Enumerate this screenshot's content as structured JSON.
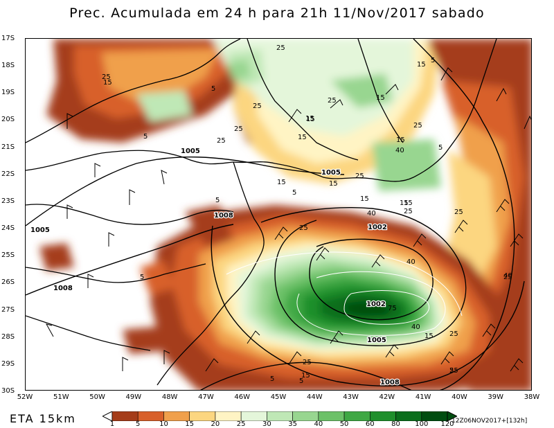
{
  "title": "Prec. Acumulada em 24 h para 21h 11/Nov/2017 sabado",
  "model_label": "ETA 15km",
  "run_stamp": "12Z06NOV2017+[132h]",
  "y_axis_labels": [
    "17S",
    "18S",
    "19S",
    "20S",
    "21S",
    "22S",
    "23S",
    "24S",
    "25S",
    "26S",
    "27S",
    "28S",
    "29S",
    "30S"
  ],
  "x_axis_labels": [
    "52W",
    "51W",
    "50W",
    "49W",
    "48W",
    "47W",
    "46W",
    "45W",
    "44W",
    "43W",
    "42W",
    "41W",
    "40W",
    "39W",
    "38W"
  ],
  "colorbar": {
    "labels": [
      "1",
      "5",
      "10",
      "15",
      "20",
      "25",
      "30",
      "35",
      "40",
      "50",
      "60",
      "80",
      "100",
      "120"
    ],
    "colors": [
      "#a53d1a",
      "#d8602a",
      "#f0a04c",
      "#fcd680",
      "#fff4c4",
      "#e4f6da",
      "#bfe8b6",
      "#98d690",
      "#6cc168",
      "#3fa844",
      "#1f8f2c",
      "#0b6e1c",
      "#004d10"
    ]
  },
  "contour_labels": {
    "precip": [
      "25",
      "15",
      "5",
      "25",
      "25",
      "5",
      "25",
      "15",
      "25",
      "15",
      "15",
      "5",
      "15",
      "25",
      "40",
      "15",
      "5",
      "5",
      "15",
      "15",
      "25",
      "15",
      "5",
      "25",
      "40",
      "25",
      "15",
      "15",
      "5",
      "5",
      "25",
      "40",
      "25",
      "40",
      "75",
      "25",
      "25",
      "40",
      "15",
      "25",
      "15",
      "5",
      "25",
      "15",
      "5"
    ],
    "pressure": [
      "1005",
      "1005",
      "1008",
      "1005",
      "1008",
      "1002",
      "1002",
      "1005",
      "1008"
    ]
  }
}
